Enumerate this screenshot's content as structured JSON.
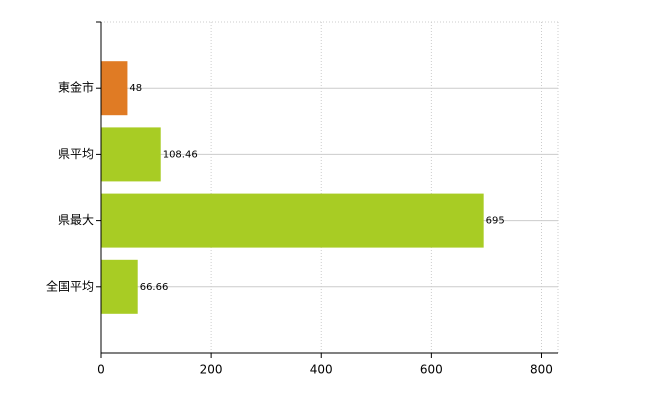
{
  "chart_data": {
    "type": "barh",
    "categories": [
      "東金市",
      "県平均",
      "県最大",
      "全国平均"
    ],
    "values": [
      48,
      108.46,
      695,
      66.66
    ],
    "colors": [
      "#e07b24",
      "#a8cc24",
      "#a8cc24",
      "#a8cc24"
    ],
    "xlim": [
      0,
      830
    ],
    "xticks": [
      0,
      200,
      400,
      600,
      800
    ],
    "grid": true
  }
}
